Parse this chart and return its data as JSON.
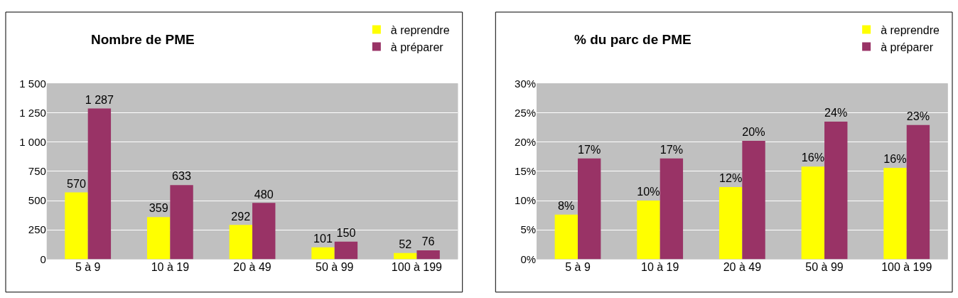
{
  "chart_data": [
    {
      "type": "bar",
      "title": "Nombre de PME",
      "categories": [
        "5 à 9",
        "10 à 19",
        "20 à 49",
        "50 à 99",
        "100 à 199"
      ],
      "series": [
        {
          "name": "à reprendre",
          "color": "#ffff00",
          "values": [
            570,
            359,
            292,
            101,
            52
          ],
          "value_labels": [
            "570",
            "359",
            "292",
            "101",
            "52"
          ]
        },
        {
          "name": "à préparer",
          "color": "#993366",
          "values": [
            1287,
            633,
            480,
            150,
            76
          ],
          "value_labels": [
            "1 287",
            "633",
            "480",
            "150",
            "76"
          ]
        }
      ],
      "ylim": [
        0,
        1500
      ],
      "yticks": [
        0,
        250,
        500,
        750,
        {
          "value": 1000,
          "label": "1 000"
        },
        {
          "value": 1250,
          "label": "1 250"
        },
        {
          "value": 1500,
          "label": "1 500"
        }
      ],
      "grid": "y",
      "legend": "top right"
    },
    {
      "type": "bar",
      "title": "% du parc de PME",
      "categories": [
        "5 à 9",
        "10 à 19",
        "20 à 49",
        "50 à 99",
        "100 à 199"
      ],
      "series": [
        {
          "name": "à reprendre",
          "color": "#ffff00",
          "values": [
            7.6,
            10,
            12.3,
            15.8,
            15.6
          ],
          "value_labels": [
            "8%",
            "10%",
            "12%",
            "16%",
            "16%"
          ]
        },
        {
          "name": "à préparer",
          "color": "#993366",
          "values": [
            17.2,
            17.2,
            20.2,
            23.5,
            22.9
          ],
          "value_labels": [
            "17%",
            "17%",
            "20%",
            "24%",
            "23%"
          ]
        }
      ],
      "ylim": [
        0,
        30
      ],
      "yticks": [
        {
          "value": 0,
          "label": "0%"
        },
        {
          "value": 5,
          "label": "5%"
        },
        {
          "value": 10,
          "label": "10%"
        },
        {
          "value": 15,
          "label": "15%"
        },
        {
          "value": 20,
          "label": "20%"
        },
        {
          "value": 25,
          "label": "25%"
        },
        {
          "value": 30,
          "label": "30%"
        }
      ],
      "grid": "y",
      "legend": "top right"
    }
  ]
}
